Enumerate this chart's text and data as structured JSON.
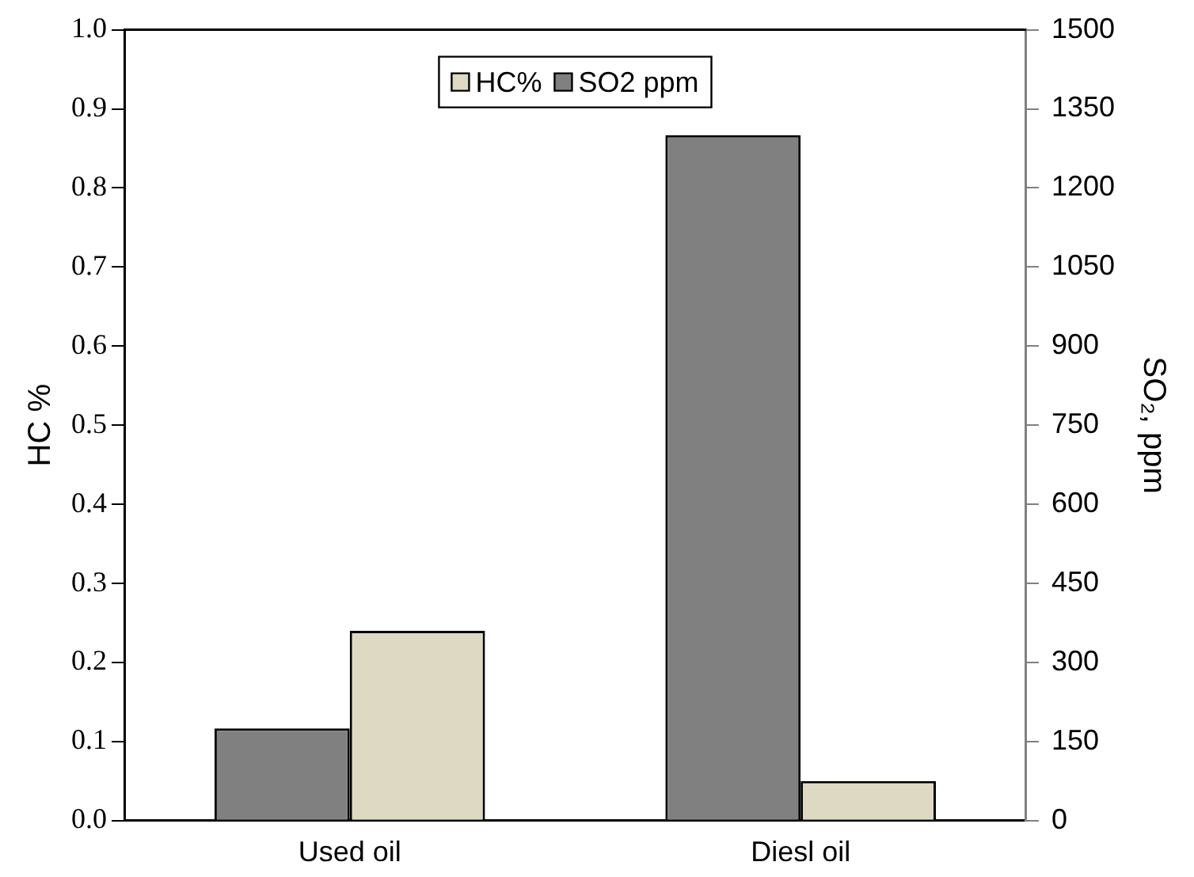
{
  "chart_data": {
    "type": "bar",
    "ylabel": "HC %",
    "y2label": "SO₂, ppm",
    "categories": [
      "Used oil",
      "Diesl oil"
    ],
    "series": [
      {
        "name": "SO2 ppm",
        "color": "#808080",
        "values": [
          175,
          1300
        ],
        "axis": "y2"
      },
      {
        "name": "HC%",
        "color": "#ddd9c3",
        "values": [
          0.24,
          0.05
        ]
      }
    ],
    "ylim": [
      0,
      1
    ],
    "yticks": [
      {
        "value": 0,
        "label": "0.0"
      },
      {
        "value": 0.1,
        "label": "0.1"
      },
      {
        "value": 0.2,
        "label": "0.2"
      },
      {
        "value": 0.3,
        "label": "0.3"
      },
      {
        "value": 0.4,
        "label": "0.4"
      },
      {
        "value": 0.5,
        "label": "0.5"
      },
      {
        "value": 0.6,
        "label": "0.6"
      },
      {
        "value": 0.7,
        "label": "0.7"
      },
      {
        "value": 0.8,
        "label": "0.8"
      },
      {
        "value": 0.9,
        "label": "0.9"
      },
      {
        "value": 1,
        "label": "1.0"
      }
    ],
    "y2lim": [
      0,
      1500
    ],
    "y2ticks": [
      0,
      150,
      300,
      450,
      600,
      750,
      900,
      1050,
      1200,
      1350,
      1500
    ],
    "legend": "top",
    "grid": false
  }
}
